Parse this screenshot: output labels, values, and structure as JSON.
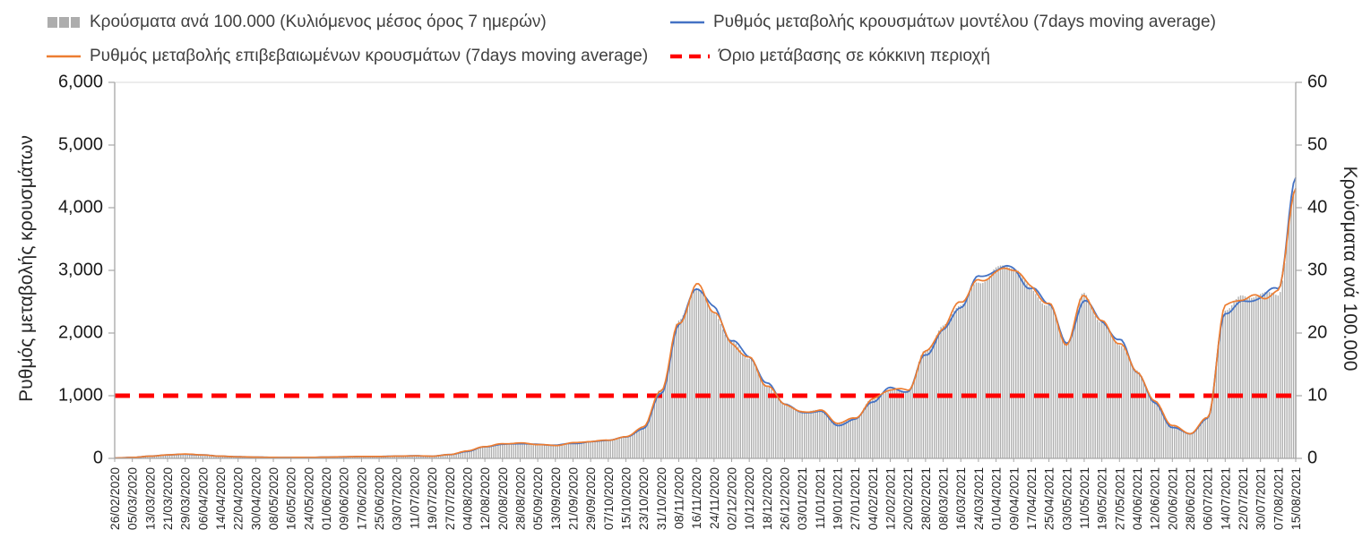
{
  "chart_data": {
    "type": "combo-bar-line",
    "title": "",
    "x_tick_labels": [
      "26/02/2020",
      "05/03/2020",
      "13/03/2020",
      "21/03/2020",
      "29/03/2020",
      "06/04/2020",
      "14/04/2020",
      "22/04/2020",
      "30/04/2020",
      "08/05/2020",
      "16/05/2020",
      "24/05/2020",
      "01/06/2020",
      "09/06/2020",
      "17/06/2020",
      "25/06/2020",
      "03/07/2020",
      "11/07/2020",
      "19/07/2020",
      "27/07/2020",
      "04/08/2020",
      "12/08/2020",
      "20/08/2020",
      "28/08/2020",
      "05/09/2020",
      "13/09/2020",
      "21/09/2020",
      "29/09/2020",
      "07/10/2020",
      "15/10/2020",
      "23/10/2020",
      "31/10/2020",
      "08/11/2020",
      "16/11/2020",
      "24/11/2020",
      "02/12/2020",
      "10/12/2020",
      "18/12/2020",
      "26/12/2020",
      "03/01/2021",
      "11/01/2021",
      "19/01/2021",
      "27/01/2021",
      "04/02/2021",
      "12/02/2021",
      "20/02/2021",
      "28/02/2021",
      "08/03/2021",
      "16/03/2021",
      "24/03/2021",
      "01/04/2021",
      "09/04/2021",
      "17/04/2021",
      "25/04/2021",
      "03/05/2021",
      "11/05/2021",
      "19/05/2021",
      "27/05/2021",
      "04/06/2021",
      "12/06/2021",
      "20/06/2021",
      "28/06/2021",
      "06/07/2021",
      "14/07/2021",
      "22/07/2021",
      "30/07/2021",
      "07/08/2021",
      "15/08/2021"
    ],
    "x_tick_interval_days": 8,
    "left_axis": {
      "label": "Ρυθμός μεταβολής κρουσμάτων",
      "min": 0,
      "max": 6000,
      "tick_step": 1000,
      "tick_labels": [
        "0",
        "1,000",
        "2,000",
        "3,000",
        "4,000",
        "5,000",
        "6,000"
      ]
    },
    "right_axis": {
      "label": "Κρούσματα ανά 100.000",
      "min": 0,
      "max": 60,
      "tick_step": 10,
      "tick_labels": [
        "0",
        "10",
        "20",
        "30",
        "40",
        "50",
        "60"
      ]
    },
    "threshold": {
      "label": "Όριο μετάβασης σε κόκκινη περιοχή",
      "left_axis_value": 1000,
      "right_axis_value": 10,
      "color": "#ff0000",
      "style": "dashed"
    },
    "series": [
      {
        "name": "Κρούσματα ανά 100.000 (Κυλιόμενος μέσος όρος 7 ημερών)",
        "type": "bar",
        "axis": "right",
        "color": "#adadad",
        "values": [
          0.1,
          0.2,
          0.4,
          0.6,
          0.7,
          0.6,
          0.4,
          0.3,
          0.2,
          0.2,
          0.2,
          0.2,
          0.2,
          0.3,
          0.3,
          0.3,
          0.4,
          0.4,
          0.4,
          0.6,
          1.2,
          1.9,
          2.3,
          2.5,
          2.3,
          2.1,
          2.5,
          2.7,
          3,
          3.4,
          5,
          11,
          21.5,
          27.4,
          23.5,
          18.5,
          16,
          11.5,
          8.7,
          7.4,
          7.7,
          5.6,
          6.4,
          9.5,
          11,
          10.8,
          17,
          21,
          25,
          28,
          30,
          30.5,
          27,
          24.5,
          18.5,
          26,
          21.5,
          18.5,
          14,
          9,
          5.2,
          4,
          6.5,
          24,
          25.5,
          26,
          26.5,
          43
        ]
      },
      {
        "name": "Ρυθμός μεταβολής κρουσμάτων μοντέλου (7days moving average)",
        "type": "line",
        "axis": "left",
        "color": "#4472c4",
        "values": [
          5,
          15,
          35,
          55,
          65,
          55,
          35,
          25,
          20,
          15,
          15,
          15,
          20,
          25,
          30,
          30,
          35,
          40,
          35,
          60,
          110,
          185,
          225,
          240,
          220,
          210,
          240,
          265,
          290,
          335,
          480,
          1050,
          2100,
          2720,
          2400,
          1900,
          1620,
          1180,
          880,
          730,
          760,
          520,
          620,
          920,
          1120,
          1060,
          1650,
          2050,
          2450,
          2850,
          3000,
          3060,
          2700,
          2480,
          1800,
          2550,
          2200,
          1870,
          1380,
          880,
          500,
          390,
          630,
          2350,
          2500,
          2580,
          2680,
          4450
        ]
      },
      {
        "name": "Ρυθμός μεταβολής επιβεβαιωμένων κρουσμάτων (7days moving average)",
        "type": "line",
        "axis": "left",
        "color": "#ed7d31",
        "values": [
          5,
          15,
          35,
          55,
          70,
          55,
          35,
          25,
          20,
          15,
          15,
          15,
          20,
          25,
          30,
          30,
          35,
          40,
          35,
          60,
          120,
          190,
          230,
          245,
          225,
          205,
          245,
          270,
          295,
          340,
          500,
          1100,
          2150,
          2740,
          2350,
          1850,
          1600,
          1150,
          870,
          740,
          770,
          560,
          640,
          950,
          1100,
          1080,
          1700,
          2100,
          2500,
          2800,
          3000,
          3050,
          2700,
          2450,
          1850,
          2600,
          2150,
          1850,
          1400,
          900,
          520,
          400,
          650,
          2400,
          2550,
          2600,
          2650,
          4300
        ]
      }
    ]
  }
}
